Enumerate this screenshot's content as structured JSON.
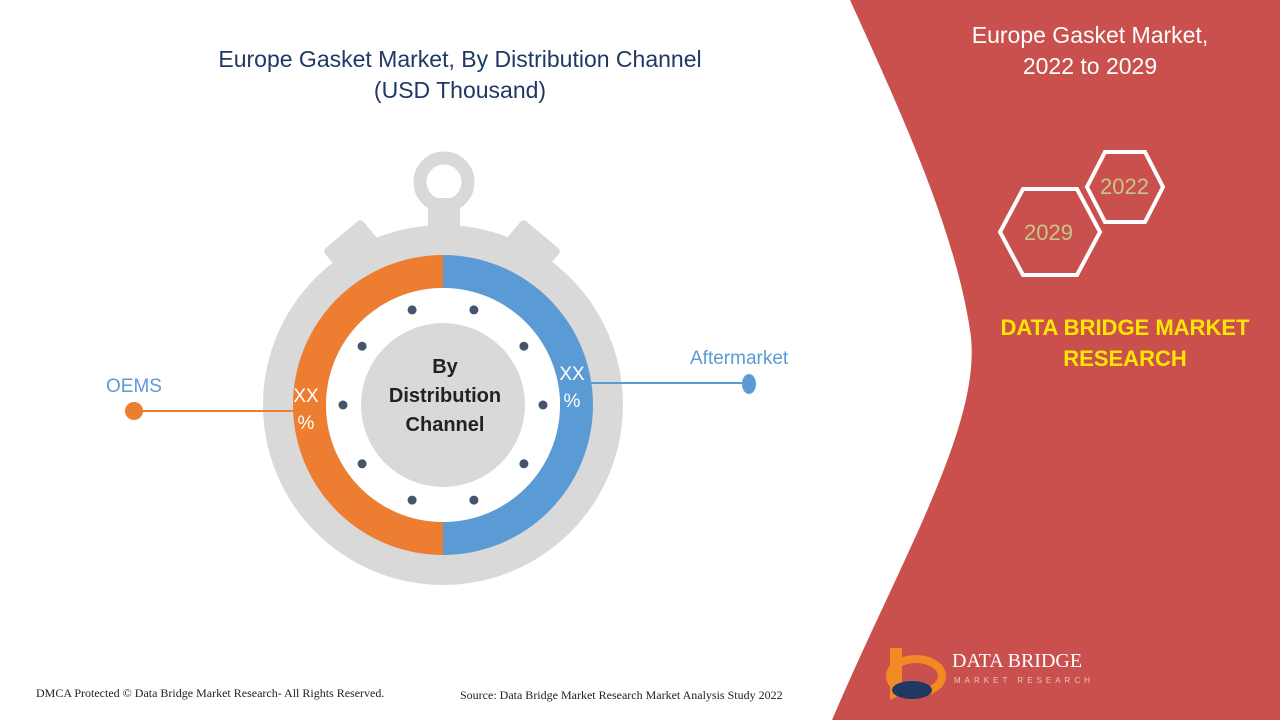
{
  "title_line1": "Europe Gasket Market, By Distribution Channel",
  "title_line2": "(USD Thousand)",
  "side_title_line1": "Europe Gasket Market,",
  "side_title_line2": "2022 to 2029",
  "years": [
    "2022",
    "2029"
  ],
  "brand_line1": "DATA BRIDGE MARKET",
  "brand_line2": "RESEARCH",
  "center_lines": [
    "By",
    "Distribution",
    "Channel"
  ],
  "footer_left": "DMCA Protected © Data Bridge Market Research- All Rights Reserved.",
  "footer_right": "Source: Data Bridge Market Research Market Analysis Study 2022",
  "logo_text": "DATA BRIDGE",
  "logo_sub": "MARKET RESEARCH",
  "colors": {
    "oems": "#ed7d31",
    "aftermarket": "#5b9bd5",
    "panel": "#c9504d",
    "title": "#1f3864"
  },
  "chart_data": {
    "type": "pie",
    "categories": [
      "OEMS",
      "Aftermarket"
    ],
    "values": [
      50,
      50
    ],
    "data_labels": [
      "XX %",
      "XX %"
    ],
    "title": "Europe Gasket Market, By Distribution Channel (USD Thousand)"
  }
}
